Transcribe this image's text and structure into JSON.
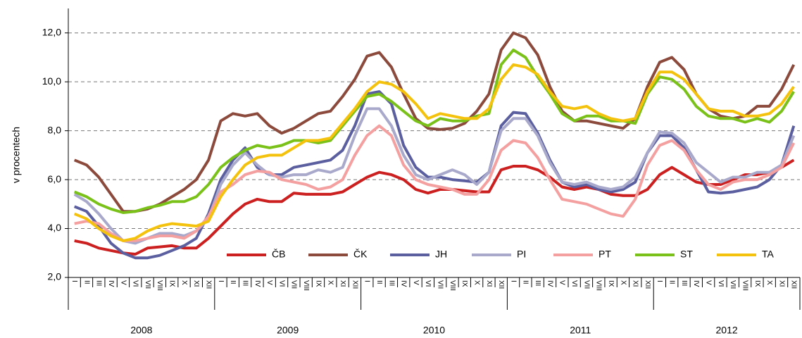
{
  "chart_data": {
    "type": "line",
    "y_label": "v procentech",
    "categories": [
      "I",
      "II",
      "III",
      "IV",
      "V",
      "VI",
      "VII",
      "VIII",
      "IX",
      "X",
      "XI",
      "XII",
      "I",
      "II",
      "III",
      "IV",
      "V",
      "VI",
      "VII",
      "VIII",
      "IX",
      "X",
      "XI",
      "XII",
      "I",
      "II",
      "III",
      "IV",
      "V",
      "VI",
      "VII",
      "VIII",
      "IX",
      "X",
      "XI",
      "XII",
      "I",
      "II",
      "III",
      "IV",
      "V",
      "VI",
      "VII",
      "VIII",
      "IX",
      "X",
      "XI",
      "XII",
      "I",
      "II",
      "III",
      "IV",
      "V",
      "VI",
      "VII",
      "VIII",
      "IX",
      "X",
      "XI",
      "XII"
    ],
    "years": [
      "2008",
      "2009",
      "2010",
      "2011",
      "2012"
    ],
    "ylim": [
      2,
      13
    ],
    "yticks": [
      {
        "value": 2,
        "label": "2,0"
      },
      {
        "value": 4,
        "label": "4,0"
      },
      {
        "value": 6,
        "label": "6,0"
      },
      {
        "value": 8,
        "label": "8,0"
      },
      {
        "value": 10,
        "label": "10,0"
      },
      {
        "value": 12,
        "label": "12,0"
      }
    ],
    "grid": true,
    "legend": "lower right",
    "series": [
      {
        "name": "ČB",
        "color": "#cc1f1f",
        "values": [
          3.5,
          3.4,
          3.2,
          3.1,
          3.0,
          2.95,
          3.2,
          3.25,
          3.3,
          3.2,
          3.2,
          3.6,
          4.1,
          4.6,
          5.0,
          5.2,
          5.1,
          5.1,
          5.45,
          5.4,
          5.4,
          5.4,
          5.5,
          5.8,
          6.1,
          6.3,
          6.2,
          6.0,
          5.6,
          5.45,
          5.6,
          5.6,
          5.55,
          5.5,
          5.5,
          6.4,
          6.55,
          6.55,
          6.4,
          6.1,
          5.7,
          5.6,
          5.7,
          5.6,
          5.4,
          5.35,
          5.35,
          5.6,
          6.2,
          6.5,
          6.2,
          5.9,
          5.8,
          5.8,
          6.0,
          6.2,
          6.2,
          6.3,
          6.5,
          6.8
        ]
      },
      {
        "name": "ČK",
        "color": "#8b4a3c",
        "values": [
          6.8,
          6.6,
          6.1,
          5.4,
          4.7,
          4.7,
          4.8,
          5.0,
          5.3,
          5.6,
          6.0,
          6.8,
          8.4,
          8.7,
          8.6,
          8.7,
          8.2,
          7.9,
          8.1,
          8.4,
          8.7,
          8.8,
          9.4,
          10.1,
          11.05,
          11.2,
          10.6,
          9.5,
          8.5,
          8.1,
          8.05,
          8.1,
          8.3,
          8.8,
          9.5,
          11.3,
          12.0,
          11.8,
          11.1,
          9.8,
          8.8,
          8.4,
          8.4,
          8.3,
          8.2,
          8.1,
          8.5,
          9.8,
          10.8,
          11.0,
          10.5,
          9.5,
          8.9,
          8.6,
          8.5,
          8.6,
          9.0,
          9.0,
          9.7,
          10.7
        ]
      },
      {
        "name": "JH",
        "color": "#5b5fa0",
        "values": [
          4.9,
          4.7,
          4.1,
          3.4,
          3.0,
          2.8,
          2.8,
          2.9,
          3.1,
          3.3,
          3.6,
          4.6,
          6.0,
          6.8,
          7.3,
          6.5,
          6.2,
          6.2,
          6.5,
          6.6,
          6.7,
          6.8,
          7.2,
          8.2,
          9.5,
          9.6,
          9.1,
          7.4,
          6.5,
          6.1,
          6.1,
          6.0,
          5.95,
          5.9,
          6.3,
          8.2,
          8.75,
          8.7,
          7.9,
          6.8,
          5.9,
          5.7,
          5.8,
          5.6,
          5.5,
          5.6,
          5.9,
          7.1,
          7.8,
          7.8,
          7.3,
          6.4,
          5.5,
          5.45,
          5.5,
          5.6,
          5.7,
          6.0,
          6.6,
          8.2
        ]
      },
      {
        "name": "PI",
        "color": "#a9a9cc",
        "values": [
          5.4,
          5.1,
          4.6,
          4.0,
          3.5,
          3.4,
          3.6,
          3.8,
          3.8,
          3.7,
          3.9,
          4.4,
          5.8,
          6.6,
          7.1,
          6.6,
          6.2,
          6.1,
          6.2,
          6.2,
          6.4,
          6.3,
          6.5,
          7.8,
          8.9,
          8.9,
          8.2,
          7.0,
          6.2,
          6.0,
          6.2,
          6.4,
          6.2,
          5.8,
          6.3,
          8.0,
          8.5,
          8.5,
          7.8,
          6.7,
          5.9,
          5.8,
          5.9,
          5.7,
          5.6,
          5.7,
          6.1,
          7.1,
          7.95,
          7.9,
          7.5,
          6.7,
          6.3,
          5.9,
          6.1,
          6.1,
          6.3,
          6.3,
          6.6,
          7.8
        ]
      },
      {
        "name": "PT",
        "color": "#f4a0a0",
        "values": [
          4.2,
          4.3,
          4.2,
          3.8,
          3.5,
          3.5,
          3.6,
          3.7,
          3.7,
          3.6,
          3.9,
          4.5,
          5.5,
          5.8,
          6.2,
          6.35,
          6.3,
          6.0,
          5.9,
          5.8,
          5.6,
          5.7,
          6.0,
          7.0,
          7.8,
          8.2,
          7.8,
          6.6,
          6.0,
          5.8,
          5.7,
          5.6,
          5.4,
          5.4,
          6.0,
          7.2,
          7.6,
          7.5,
          6.9,
          6.0,
          5.2,
          5.1,
          5.0,
          4.8,
          4.6,
          4.5,
          5.2,
          6.6,
          7.4,
          7.6,
          7.2,
          6.4,
          5.8,
          5.6,
          5.9,
          6.0,
          6.0,
          6.2,
          6.5,
          7.5
        ]
      },
      {
        "name": "ST",
        "color": "#7ac11a",
        "values": [
          5.5,
          5.3,
          5.0,
          4.8,
          4.65,
          4.7,
          4.85,
          4.95,
          5.1,
          5.1,
          5.3,
          5.8,
          6.5,
          6.9,
          7.2,
          7.4,
          7.3,
          7.4,
          7.6,
          7.6,
          7.5,
          7.6,
          8.2,
          8.8,
          9.4,
          9.5,
          9.2,
          8.8,
          8.4,
          8.2,
          8.5,
          8.4,
          8.4,
          8.6,
          8.7,
          10.7,
          11.3,
          11.0,
          10.2,
          9.5,
          8.7,
          8.4,
          8.6,
          8.6,
          8.4,
          8.4,
          8.3,
          9.5,
          10.2,
          10.1,
          9.7,
          9.0,
          8.6,
          8.5,
          8.5,
          8.35,
          8.5,
          8.35,
          8.8,
          9.6
        ]
      },
      {
        "name": "TA",
        "color": "#f4c20d",
        "values": [
          4.6,
          4.4,
          4.0,
          3.7,
          3.5,
          3.6,
          3.9,
          4.1,
          4.2,
          4.15,
          4.1,
          4.3,
          5.3,
          6.0,
          6.6,
          6.9,
          7.0,
          7.0,
          7.3,
          7.6,
          7.6,
          7.7,
          8.3,
          8.9,
          9.6,
          10.0,
          9.9,
          9.6,
          9.1,
          8.5,
          8.7,
          8.6,
          8.5,
          8.5,
          8.9,
          10.1,
          10.7,
          10.6,
          10.3,
          9.6,
          9.0,
          8.9,
          9.0,
          8.7,
          8.5,
          8.4,
          8.5,
          9.6,
          10.4,
          10.4,
          10.1,
          9.5,
          8.9,
          8.8,
          8.8,
          8.6,
          8.6,
          8.7,
          9.1,
          9.8
        ]
      }
    ]
  }
}
